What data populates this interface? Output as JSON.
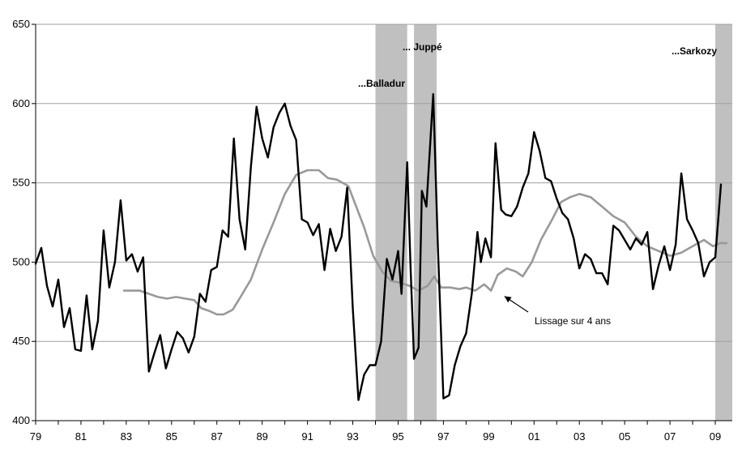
{
  "chart_data": {
    "type": "line",
    "title": "",
    "xlabel": "",
    "ylabel": "",
    "ylim": [
      400,
      650
    ],
    "yticks": [
      400,
      450,
      500,
      550,
      600,
      650
    ],
    "xlim": [
      1979.0,
      2009.75
    ],
    "xticks": [
      {
        "x": 1979,
        "label": "79"
      },
      {
        "x": 1981,
        "label": "81"
      },
      {
        "x": 1983,
        "label": "83"
      },
      {
        "x": 1985,
        "label": "85"
      },
      {
        "x": 1987,
        "label": "87"
      },
      {
        "x": 1989,
        "label": "89"
      },
      {
        "x": 1991,
        "label": "91"
      },
      {
        "x": 1993,
        "label": "93"
      },
      {
        "x": 1995,
        "label": "95"
      },
      {
        "x": 1997,
        "label": "97"
      },
      {
        "x": 1999,
        "label": "99"
      },
      {
        "x": 2001,
        "label": "01"
      },
      {
        "x": 2003,
        "label": "03"
      },
      {
        "x": 2005,
        "label": "05"
      },
      {
        "x": 2007,
        "label": "07"
      },
      {
        "x": 2009,
        "label": "09"
      }
    ],
    "grid": "horizontal",
    "legend": "none",
    "shaded_periods": [
      {
        "start": 1994.0,
        "end": 1995.4,
        "label": "...Balladur"
      },
      {
        "start": 1995.7,
        "end": 1996.7,
        "label": "... Juppé"
      },
      {
        "start": 2009.0,
        "end": 2009.75,
        "label": "...Sarkozy"
      }
    ],
    "annotations": [
      {
        "text": "Lissage sur 4 ans",
        "x": 2001.2,
        "y": 463,
        "arrow_to_x": 1999.55,
        "arrow_to_y": 480
      }
    ],
    "series": [
      {
        "color": "#000000",
        "width": 2.4,
        "points": [
          [
            1979.0,
            499
          ],
          [
            1979.25,
            509
          ],
          [
            1979.5,
            485
          ],
          [
            1979.75,
            472
          ],
          [
            1980.0,
            489
          ],
          [
            1980.25,
            459
          ],
          [
            1980.5,
            471
          ],
          [
            1980.75,
            445
          ],
          [
            1981.0,
            444
          ],
          [
            1981.25,
            479
          ],
          [
            1981.5,
            445
          ],
          [
            1981.75,
            463
          ],
          [
            1982.0,
            520
          ],
          [
            1982.25,
            484
          ],
          [
            1982.5,
            500
          ],
          [
            1982.75,
            539
          ],
          [
            1983.0,
            501
          ],
          [
            1983.25,
            505
          ],
          [
            1983.5,
            494
          ],
          [
            1983.75,
            503
          ],
          [
            1984.0,
            431
          ],
          [
            1984.25,
            443
          ],
          [
            1984.5,
            454
          ],
          [
            1984.75,
            433
          ],
          [
            1985.0,
            445
          ],
          [
            1985.25,
            456
          ],
          [
            1985.5,
            452
          ],
          [
            1985.75,
            443
          ],
          [
            1986.0,
            453
          ],
          [
            1986.25,
            480
          ],
          [
            1986.5,
            475
          ],
          [
            1986.75,
            495
          ],
          [
            1987.0,
            497
          ],
          [
            1987.25,
            520
          ],
          [
            1987.5,
            516
          ],
          [
            1987.75,
            578
          ],
          [
            1988.0,
            527
          ],
          [
            1988.25,
            508
          ],
          [
            1988.5,
            560
          ],
          [
            1988.75,
            598
          ],
          [
            1989.0,
            578
          ],
          [
            1989.25,
            566
          ],
          [
            1989.5,
            585
          ],
          [
            1989.75,
            594
          ],
          [
            1990.0,
            600
          ],
          [
            1990.25,
            586
          ],
          [
            1990.5,
            577
          ],
          [
            1990.75,
            527
          ],
          [
            1991.0,
            525
          ],
          [
            1991.25,
            517
          ],
          [
            1991.5,
            524
          ],
          [
            1991.75,
            495
          ],
          [
            1992.0,
            521
          ],
          [
            1992.25,
            507
          ],
          [
            1992.5,
            516
          ],
          [
            1992.75,
            547
          ],
          [
            1993.0,
            471
          ],
          [
            1993.25,
            413
          ],
          [
            1993.5,
            429
          ],
          [
            1993.75,
            435
          ],
          [
            1994.0,
            435
          ],
          [
            1994.25,
            450
          ],
          [
            1994.5,
            502
          ],
          [
            1994.75,
            489
          ],
          [
            1995.0,
            507
          ],
          [
            1995.15,
            480
          ],
          [
            1995.4,
            563
          ],
          [
            1995.55,
            496
          ],
          [
            1995.7,
            439
          ],
          [
            1995.9,
            446
          ],
          [
            1996.05,
            545
          ],
          [
            1996.25,
            535
          ],
          [
            1996.55,
            606
          ],
          [
            1996.75,
            512
          ],
          [
            1997.0,
            414
          ],
          [
            1997.25,
            416
          ],
          [
            1997.5,
            435
          ],
          [
            1997.75,
            447
          ],
          [
            1998.0,
            455
          ],
          [
            1998.25,
            480
          ],
          [
            1998.5,
            519
          ],
          [
            1998.65,
            500
          ],
          [
            1998.85,
            515
          ],
          [
            1999.1,
            503
          ],
          [
            1999.3,
            575
          ],
          [
            1999.55,
            533
          ],
          [
            1999.75,
            530
          ],
          [
            2000.0,
            529
          ],
          [
            2000.25,
            535
          ],
          [
            2000.5,
            547
          ],
          [
            2000.75,
            556
          ],
          [
            2001.0,
            582
          ],
          [
            2001.25,
            570
          ],
          [
            2001.5,
            553
          ],
          [
            2001.75,
            551
          ],
          [
            2002.0,
            540
          ],
          [
            2002.25,
            531
          ],
          [
            2002.5,
            527
          ],
          [
            2002.75,
            515
          ],
          [
            2003.0,
            496
          ],
          [
            2003.25,
            505
          ],
          [
            2003.5,
            502
          ],
          [
            2003.75,
            493
          ],
          [
            2004.0,
            493
          ],
          [
            2004.25,
            486
          ],
          [
            2004.5,
            523
          ],
          [
            2004.75,
            520
          ],
          [
            2005.0,
            514
          ],
          [
            2005.25,
            508
          ],
          [
            2005.5,
            515
          ],
          [
            2005.75,
            511
          ],
          [
            2006.0,
            519
          ],
          [
            2006.25,
            483
          ],
          [
            2006.5,
            498
          ],
          [
            2006.75,
            510
          ],
          [
            2007.0,
            495
          ],
          [
            2007.25,
            511
          ],
          [
            2007.5,
            556
          ],
          [
            2007.75,
            527
          ],
          [
            2008.0,
            520
          ],
          [
            2008.25,
            512
          ],
          [
            2008.5,
            491
          ],
          [
            2008.75,
            500
          ],
          [
            2009.0,
            503
          ],
          [
            2009.25,
            549
          ]
        ]
      },
      {
        "name": "Lissage sur 4 ans",
        "color": "#999999",
        "width": 2.6,
        "points": [
          [
            1982.9,
            482
          ],
          [
            1983.3,
            482
          ],
          [
            1983.6,
            482
          ],
          [
            1984.0,
            480
          ],
          [
            1984.4,
            478
          ],
          [
            1984.8,
            477
          ],
          [
            1985.2,
            478
          ],
          [
            1985.6,
            477
          ],
          [
            1986.0,
            476
          ],
          [
            1986.3,
            471
          ],
          [
            1986.7,
            469
          ],
          [
            1987.0,
            467
          ],
          [
            1987.3,
            467
          ],
          [
            1987.7,
            470
          ],
          [
            1988.0,
            477
          ],
          [
            1988.5,
            489
          ],
          [
            1989.0,
            508
          ],
          [
            1989.5,
            525
          ],
          [
            1990.0,
            543
          ],
          [
            1990.5,
            555
          ],
          [
            1991.0,
            558
          ],
          [
            1991.5,
            558
          ],
          [
            1991.9,
            553
          ],
          [
            1992.3,
            552
          ],
          [
            1992.8,
            548
          ],
          [
            1993.1,
            537
          ],
          [
            1993.5,
            522
          ],
          [
            1993.9,
            504
          ],
          [
            1994.3,
            494
          ],
          [
            1994.7,
            488
          ],
          [
            1995.1,
            487
          ],
          [
            1995.5,
            485
          ],
          [
            1995.9,
            482
          ],
          [
            1996.3,
            485
          ],
          [
            1996.6,
            491
          ],
          [
            1996.9,
            484
          ],
          [
            1997.3,
            484
          ],
          [
            1997.7,
            483
          ],
          [
            1998.0,
            484
          ],
          [
            1998.4,
            482
          ],
          [
            1998.8,
            486
          ],
          [
            1999.1,
            482
          ],
          [
            1999.4,
            492
          ],
          [
            1999.8,
            496
          ],
          [
            2000.2,
            494
          ],
          [
            2000.5,
            491
          ],
          [
            2000.9,
            500
          ],
          [
            2001.3,
            514
          ],
          [
            2001.8,
            527
          ],
          [
            2002.2,
            538
          ],
          [
            2002.6,
            541
          ],
          [
            2003.0,
            543
          ],
          [
            2003.5,
            541
          ],
          [
            2004.0,
            535
          ],
          [
            2004.5,
            529
          ],
          [
            2005.0,
            525
          ],
          [
            2005.5,
            516
          ],
          [
            2006.0,
            510
          ],
          [
            2006.5,
            507
          ],
          [
            2007.0,
            504
          ],
          [
            2007.5,
            506
          ],
          [
            2008.0,
            510
          ],
          [
            2008.5,
            514
          ],
          [
            2008.9,
            510
          ],
          [
            2009.2,
            512
          ],
          [
            2009.5,
            512
          ]
        ]
      }
    ]
  }
}
